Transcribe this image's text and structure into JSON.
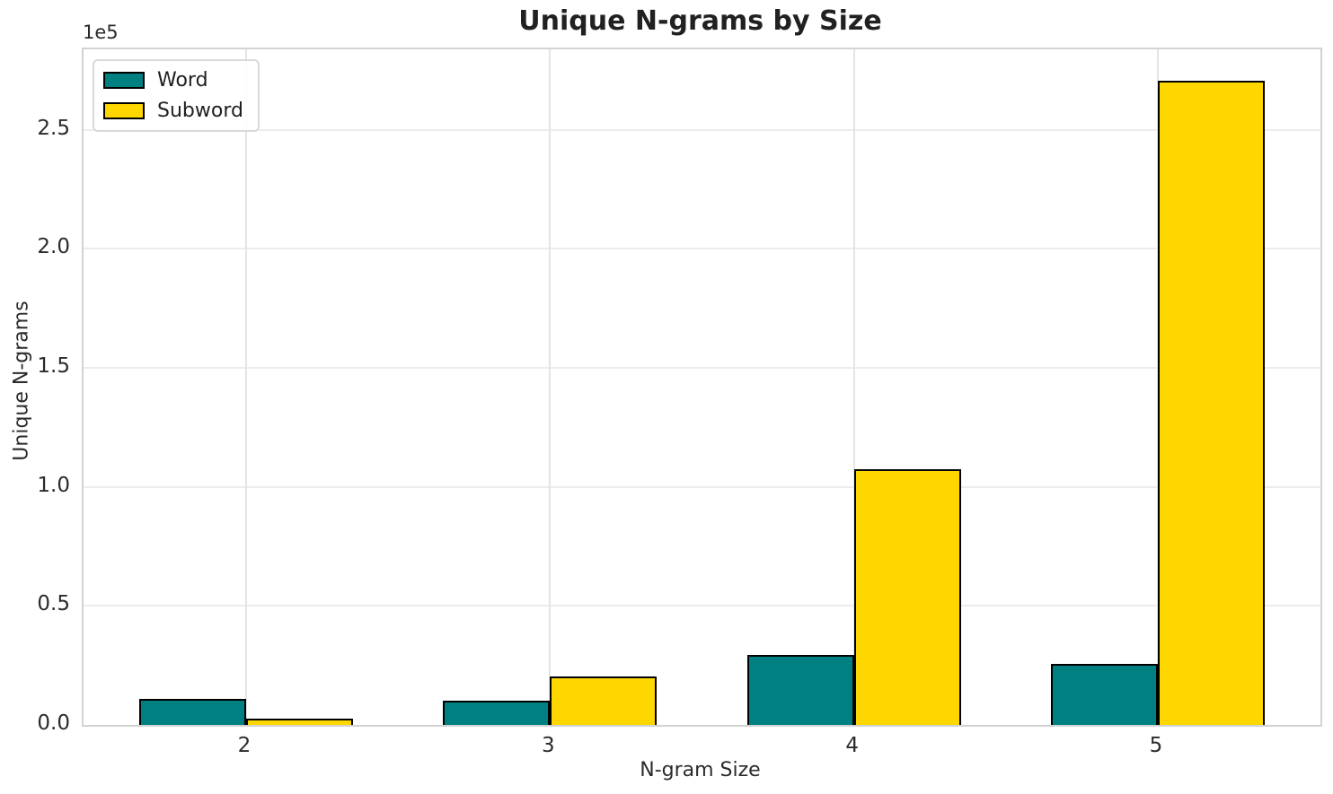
{
  "chart_data": {
    "type": "bar",
    "title": "Unique N-grams by Size",
    "xlabel": "N-gram Size",
    "ylabel": "Unique N-grams",
    "y_offset_label": "1e5",
    "categories": [
      "2",
      "3",
      "4",
      "5"
    ],
    "series": [
      {
        "name": "Word",
        "color": "#008080",
        "values": [
          11000,
          10000,
          29500,
          25500
        ]
      },
      {
        "name": "Subword",
        "color": "#FFD700",
        "values": [
          2500,
          20500,
          107500,
          270500
        ]
      }
    ],
    "bar_edge_color": "#000000",
    "ylim": [
      0,
      283800
    ],
    "yticks": [
      {
        "label": "0.0",
        "value": 0
      },
      {
        "label": "0.5",
        "value": 50000
      },
      {
        "label": "1.0",
        "value": 100000
      },
      {
        "label": "1.5",
        "value": 150000
      },
      {
        "label": "2.0",
        "value": 200000
      },
      {
        "label": "2.5",
        "value": 250000
      }
    ],
    "grid": true,
    "legend_position": "upper left"
  }
}
